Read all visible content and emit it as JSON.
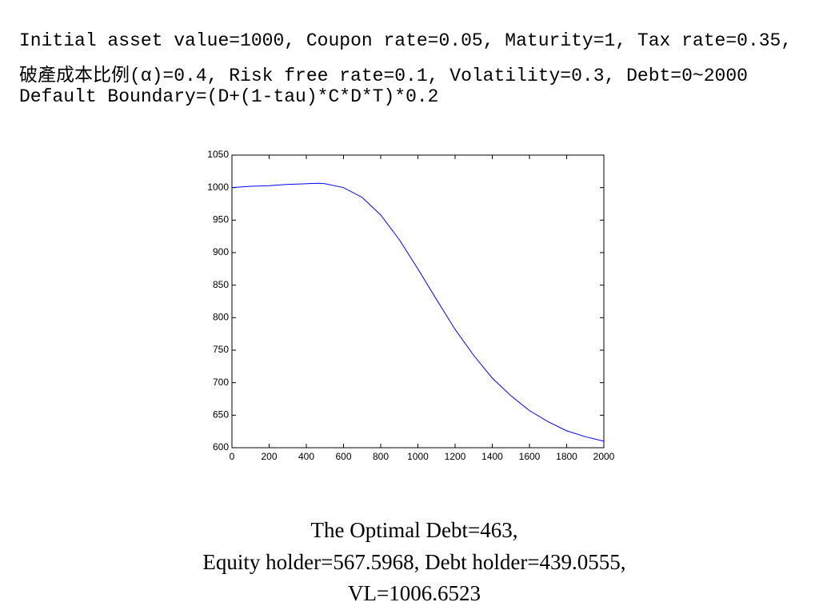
{
  "header": {
    "lines": [
      "Initial asset value=1000, Coupon rate=0.05, Maturity=1, Tax rate=0.35,",
      "破產成本比例(α)=0.4, Risk free rate=0.1, Volatility=0.3, Debt=0~2000",
      "Default Boundary=(D+(1-tau)*C*D*T)*0.2"
    ]
  },
  "chart_data": {
    "type": "line",
    "x": [
      0,
      100,
      200,
      300,
      400,
      463,
      500,
      600,
      700,
      800,
      900,
      1000,
      1100,
      1200,
      1300,
      1400,
      1500,
      1600,
      1700,
      1800,
      1900,
      2000
    ],
    "series": [
      {
        "name": "VL",
        "color": "#0000ff",
        "values": [
          1000,
          1002,
          1003,
          1005,
          1006,
          1006.6523,
          1006,
          1000,
          985,
          958,
          920,
          875,
          828,
          782,
          742,
          707,
          680,
          657,
          640,
          626,
          617,
          610
        ]
      }
    ],
    "xlim": [
      0,
      2000
    ],
    "xticks": [
      0,
      200,
      400,
      600,
      800,
      1000,
      1200,
      1400,
      1600,
      1800,
      2000
    ],
    "ylim": [
      600,
      1050
    ],
    "yticks": [
      600,
      650,
      700,
      750,
      800,
      850,
      900,
      950,
      1000,
      1050
    ]
  },
  "footer": {
    "lines": [
      "The Optimal Debt=463,",
      "Equity holder=567.5968, Debt holder=439.0555,",
      "VL=1006.6523"
    ]
  }
}
